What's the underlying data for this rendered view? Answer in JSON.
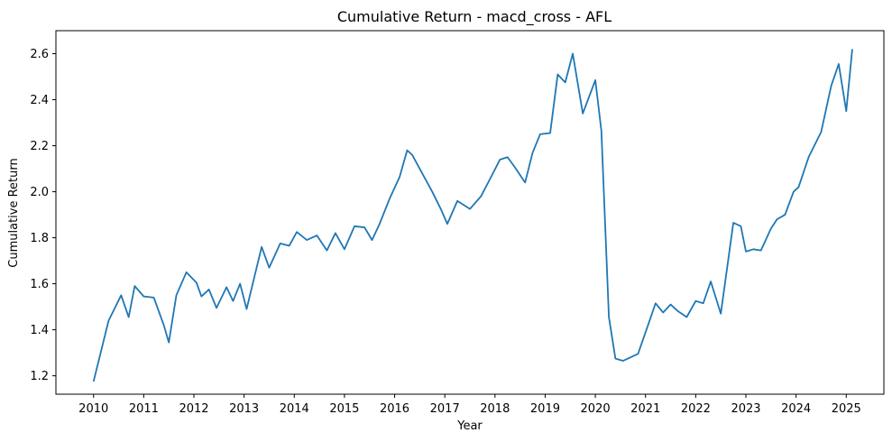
{
  "chart_data": {
    "type": "line",
    "title": "Cumulative Return - macd_cross - AFL",
    "xlabel": "Year",
    "ylabel": "Cumulative Return",
    "xlim": [
      2009.25,
      2025.75
    ],
    "ylim": [
      1.12,
      2.7
    ],
    "x_ticks": [
      2010,
      2011,
      2012,
      2013,
      2014,
      2015,
      2016,
      2017,
      2018,
      2019,
      2020,
      2021,
      2022,
      2023,
      2024,
      2025
    ],
    "y_ticks": [
      1.2,
      1.4,
      1.6,
      1.8,
      2.0,
      2.2,
      2.4,
      2.6
    ],
    "y_tick_labels": [
      "1.2",
      "1.4",
      "1.6",
      "1.8",
      "2.0",
      "2.2",
      "2.4",
      "2.6"
    ],
    "grid": false,
    "legend": "none",
    "line_color": "#1f77b4",
    "series": [
      {
        "name": "",
        "x": [
          2010.0,
          2010.3,
          2010.55,
          2010.7,
          2010.82,
          2011.0,
          2011.2,
          2011.4,
          2011.5,
          2011.65,
          2011.85,
          2012.05,
          2012.15,
          2012.3,
          2012.45,
          2012.65,
          2012.78,
          2012.92,
          2013.05,
          2013.2,
          2013.35,
          2013.5,
          2013.72,
          2013.9,
          2014.05,
          2014.25,
          2014.45,
          2014.65,
          2014.82,
          2015.0,
          2015.2,
          2015.4,
          2015.55,
          2015.7,
          2015.9,
          2016.1,
          2016.25,
          2016.35,
          2016.55,
          2016.75,
          2016.92,
          2017.05,
          2017.25,
          2017.5,
          2017.72,
          2017.9,
          2018.1,
          2018.25,
          2018.4,
          2018.6,
          2018.75,
          2018.9,
          2019.1,
          2019.25,
          2019.4,
          2019.55,
          2019.75,
          2020.0,
          2020.12,
          2020.27,
          2020.4,
          2020.55,
          2020.7,
          2020.85,
          2021.05,
          2021.2,
          2021.35,
          2021.5,
          2021.65,
          2021.82,
          2022.0,
          2022.15,
          2022.3,
          2022.5,
          2022.75,
          2022.9,
          2023.0,
          2023.15,
          2023.3,
          2023.5,
          2023.62,
          2023.78,
          2023.95,
          2024.05,
          2024.25,
          2024.5,
          2024.7,
          2024.85,
          2025.0,
          2025.12
        ],
        "values": [
          1.175,
          1.44,
          1.55,
          1.455,
          1.59,
          1.545,
          1.54,
          1.42,
          1.345,
          1.55,
          1.65,
          1.605,
          1.545,
          1.575,
          1.495,
          1.585,
          1.525,
          1.6,
          1.49,
          1.625,
          1.76,
          1.67,
          1.775,
          1.765,
          1.825,
          1.79,
          1.81,
          1.745,
          1.82,
          1.75,
          1.85,
          1.845,
          1.79,
          1.86,
          1.97,
          2.065,
          2.18,
          2.16,
          2.08,
          2.0,
          1.925,
          1.86,
          1.96,
          1.925,
          1.98,
          2.055,
          2.14,
          2.15,
          2.105,
          2.04,
          2.17,
          2.25,
          2.255,
          2.51,
          2.475,
          2.6,
          2.34,
          2.485,
          2.265,
          1.455,
          1.275,
          1.265,
          1.28,
          1.295,
          1.42,
          1.515,
          1.475,
          1.51,
          1.48,
          1.455,
          1.525,
          1.515,
          1.61,
          1.47,
          1.865,
          1.85,
          1.74,
          1.75,
          1.745,
          1.84,
          1.88,
          1.9,
          2.0,
          2.02,
          2.15,
          2.26,
          2.46,
          2.555,
          2.35,
          2.62
        ]
      }
    ]
  }
}
